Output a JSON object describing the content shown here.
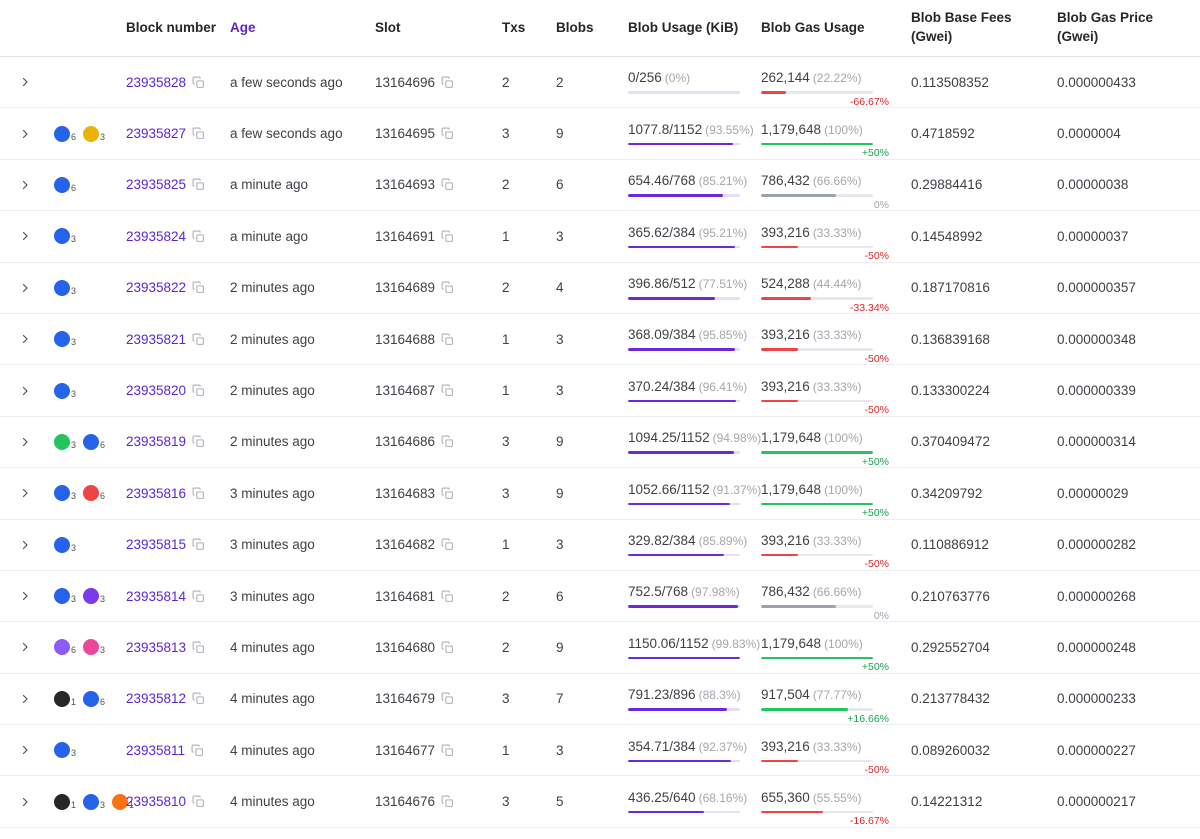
{
  "colors": {
    "accent": "#5d25d4",
    "usage_bar": "#6d28d9",
    "bar_up": "#22c55e",
    "bar_down": "#ef4444",
    "bar_flat": "#9ca3af",
    "text_up": "#16a34a",
    "text_down": "#dc2626",
    "text_flat": "#9ca3af"
  },
  "table": {
    "columns": [
      "Block number",
      "Age",
      "Slot",
      "Txs",
      "Blobs",
      "Blob Usage (KiB)",
      "Blob Gas Usage",
      "Blob Base Fees (Gwei)",
      "Blob Gas Price (Gwei)"
    ],
    "rows": [
      {
        "block_number": "23935828",
        "age": "a few seconds ago",
        "slot": "13164696",
        "txs": "2",
        "blobs": "2",
        "blob_usage": {
          "value": "0/256",
          "percent": "(0%)",
          "bar_pct": 0
        },
        "blob_gas": {
          "value": "262,144",
          "percent": "(22.22%)",
          "bar_pct": 22.22,
          "change": "-66.67%",
          "trend": "down"
        },
        "blob_base_fees": "0.113508352",
        "blob_gas_price": "0.000000433",
        "rollups": []
      },
      {
        "block_number": "23935827",
        "age": "a few seconds ago",
        "slot": "13164695",
        "txs": "3",
        "blobs": "9",
        "blob_usage": {
          "value": "1077.8/1152",
          "percent": "(93.55%)",
          "bar_pct": 93.55
        },
        "blob_gas": {
          "value": "1,179,648",
          "percent": "(100%)",
          "bar_pct": 100,
          "change": "+50%",
          "trend": "up"
        },
        "blob_base_fees": "0.4718592",
        "blob_gas_price": "0.0000004",
        "rollups": [
          {
            "color": "#2563eb",
            "count": "6"
          },
          {
            "color": "#eab308",
            "count": "3"
          }
        ]
      },
      {
        "block_number": "23935825",
        "age": "a minute ago",
        "slot": "13164693",
        "txs": "2",
        "blobs": "6",
        "blob_usage": {
          "value": "654.46/768",
          "percent": "(85.21%)",
          "bar_pct": 85.21
        },
        "blob_gas": {
          "value": "786,432",
          "percent": "(66.66%)",
          "bar_pct": 66.66,
          "change": "0%",
          "trend": "flat"
        },
        "blob_base_fees": "0.29884416",
        "blob_gas_price": "0.00000038",
        "rollups": [
          {
            "color": "#2563eb",
            "count": "6"
          }
        ]
      },
      {
        "block_number": "23935824",
        "age": "a minute ago",
        "slot": "13164691",
        "txs": "1",
        "blobs": "3",
        "blob_usage": {
          "value": "365.62/384",
          "percent": "(95.21%)",
          "bar_pct": 95.21
        },
        "blob_gas": {
          "value": "393,216",
          "percent": "(33.33%)",
          "bar_pct": 33.33,
          "change": "-50%",
          "trend": "down"
        },
        "blob_base_fees": "0.14548992",
        "blob_gas_price": "0.00000037",
        "rollups": [
          {
            "color": "#2563eb",
            "count": "3"
          }
        ]
      },
      {
        "block_number": "23935822",
        "age": "2 minutes ago",
        "slot": "13164689",
        "txs": "2",
        "blobs": "4",
        "blob_usage": {
          "value": "396.86/512",
          "percent": "(77.51%)",
          "bar_pct": 77.51
        },
        "blob_gas": {
          "value": "524,288",
          "percent": "(44.44%)",
          "bar_pct": 44.44,
          "change": "-33.34%",
          "trend": "down"
        },
        "blob_base_fees": "0.187170816",
        "blob_gas_price": "0.000000357",
        "rollups": [
          {
            "color": "#2563eb",
            "count": "3"
          }
        ]
      },
      {
        "block_number": "23935821",
        "age": "2 minutes ago",
        "slot": "13164688",
        "txs": "1",
        "blobs": "3",
        "blob_usage": {
          "value": "368.09/384",
          "percent": "(95.85%)",
          "bar_pct": 95.85
        },
        "blob_gas": {
          "value": "393,216",
          "percent": "(33.33%)",
          "bar_pct": 33.33,
          "change": "-50%",
          "trend": "down"
        },
        "blob_base_fees": "0.136839168",
        "blob_gas_price": "0.000000348",
        "rollups": [
          {
            "color": "#2563eb",
            "count": "3"
          }
        ]
      },
      {
        "block_number": "23935820",
        "age": "2 minutes ago",
        "slot": "13164687",
        "txs": "1",
        "blobs": "3",
        "blob_usage": {
          "value": "370.24/384",
          "percent": "(96.41%)",
          "bar_pct": 96.41
        },
        "blob_gas": {
          "value": "393,216",
          "percent": "(33.33%)",
          "bar_pct": 33.33,
          "change": "-50%",
          "trend": "down"
        },
        "blob_base_fees": "0.133300224",
        "blob_gas_price": "0.000000339",
        "rollups": [
          {
            "color": "#2563eb",
            "count": "3"
          }
        ]
      },
      {
        "block_number": "23935819",
        "age": "2 minutes ago",
        "slot": "13164686",
        "txs": "3",
        "blobs": "9",
        "blob_usage": {
          "value": "1094.25/1152",
          "percent": "(94.98%)",
          "bar_pct": 94.98
        },
        "blob_gas": {
          "value": "1,179,648",
          "percent": "(100%)",
          "bar_pct": 100,
          "change": "+50%",
          "trend": "up"
        },
        "blob_base_fees": "0.370409472",
        "blob_gas_price": "0.000000314",
        "rollups": [
          {
            "color": "#22c55e",
            "count": "3"
          },
          {
            "color": "#2563eb",
            "count": "6"
          }
        ]
      },
      {
        "block_number": "23935816",
        "age": "3 minutes ago",
        "slot": "13164683",
        "txs": "3",
        "blobs": "9",
        "blob_usage": {
          "value": "1052.66/1152",
          "percent": "(91.37%)",
          "bar_pct": 91.37
        },
        "blob_gas": {
          "value": "1,179,648",
          "percent": "(100%)",
          "bar_pct": 100,
          "change": "+50%",
          "trend": "up"
        },
        "blob_base_fees": "0.34209792",
        "blob_gas_price": "0.00000029",
        "rollups": [
          {
            "color": "#2563eb",
            "count": "3"
          },
          {
            "color": "#ef4444",
            "count": "6"
          }
        ]
      },
      {
        "block_number": "23935815",
        "age": "3 minutes ago",
        "slot": "13164682",
        "txs": "1",
        "blobs": "3",
        "blob_usage": {
          "value": "329.82/384",
          "percent": "(85.89%)",
          "bar_pct": 85.89
        },
        "blob_gas": {
          "value": "393,216",
          "percent": "(33.33%)",
          "bar_pct": 33.33,
          "change": "-50%",
          "trend": "down"
        },
        "blob_base_fees": "0.110886912",
        "blob_gas_price": "0.000000282",
        "rollups": [
          {
            "color": "#2563eb",
            "count": "3"
          }
        ]
      },
      {
        "block_number": "23935814",
        "age": "3 minutes ago",
        "slot": "13164681",
        "txs": "2",
        "blobs": "6",
        "blob_usage": {
          "value": "752.5/768",
          "percent": "(97.98%)",
          "bar_pct": 97.98
        },
        "blob_gas": {
          "value": "786,432",
          "percent": "(66.66%)",
          "bar_pct": 66.66,
          "change": "0%",
          "trend": "flat"
        },
        "blob_base_fees": "0.210763776",
        "blob_gas_price": "0.000000268",
        "rollups": [
          {
            "color": "#2563eb",
            "count": "3"
          },
          {
            "color": "#7c3aed",
            "count": "3"
          }
        ]
      },
      {
        "block_number": "23935813",
        "age": "4 minutes ago",
        "slot": "13164680",
        "txs": "2",
        "blobs": "9",
        "blob_usage": {
          "value": "1150.06/1152",
          "percent": "(99.83%)",
          "bar_pct": 99.83
        },
        "blob_gas": {
          "value": "1,179,648",
          "percent": "(100%)",
          "bar_pct": 100,
          "change": "+50%",
          "trend": "up"
        },
        "blob_base_fees": "0.292552704",
        "blob_gas_price": "0.000000248",
        "rollups": [
          {
            "color": "#8b5cf6",
            "count": "6"
          },
          {
            "color": "#ec4899",
            "count": "3"
          }
        ]
      },
      {
        "block_number": "23935812",
        "age": "4 minutes ago",
        "slot": "13164679",
        "txs": "3",
        "blobs": "7",
        "blob_usage": {
          "value": "791.23/896",
          "percent": "(88.3%)",
          "bar_pct": 88.3
        },
        "blob_gas": {
          "value": "917,504",
          "percent": "(77.77%)",
          "bar_pct": 77.77,
          "change": "+16.66%",
          "trend": "up"
        },
        "blob_base_fees": "0.213778432",
        "blob_gas_price": "0.000000233",
        "rollups": [
          {
            "color": "#27272a",
            "count": "1"
          },
          {
            "color": "#2563eb",
            "count": "6"
          }
        ]
      },
      {
        "block_number": "23935811",
        "age": "4 minutes ago",
        "slot": "13164677",
        "txs": "1",
        "blobs": "3",
        "blob_usage": {
          "value": "354.71/384",
          "percent": "(92.37%)",
          "bar_pct": 92.37
        },
        "blob_gas": {
          "value": "393,216",
          "percent": "(33.33%)",
          "bar_pct": 33.33,
          "change": "-50%",
          "trend": "down"
        },
        "blob_base_fees": "0.089260032",
        "blob_gas_price": "0.000000227",
        "rollups": [
          {
            "color": "#2563eb",
            "count": "3"
          }
        ]
      },
      {
        "block_number": "23935810",
        "age": "4 minutes ago",
        "slot": "13164676",
        "txs": "3",
        "blobs": "5",
        "blob_usage": {
          "value": "436.25/640",
          "percent": "(68.16%)",
          "bar_pct": 68.16
        },
        "blob_gas": {
          "value": "655,360",
          "percent": "(55.55%)",
          "bar_pct": 55.55,
          "change": "-16.67%",
          "trend": "down"
        },
        "blob_base_fees": "0.14221312",
        "blob_gas_price": "0.000000217",
        "rollups": [
          {
            "color": "#27272a",
            "count": "1"
          },
          {
            "color": "#2563eb",
            "count": "3"
          },
          {
            "color": "#f97316",
            "count": "1"
          }
        ]
      }
    ]
  }
}
